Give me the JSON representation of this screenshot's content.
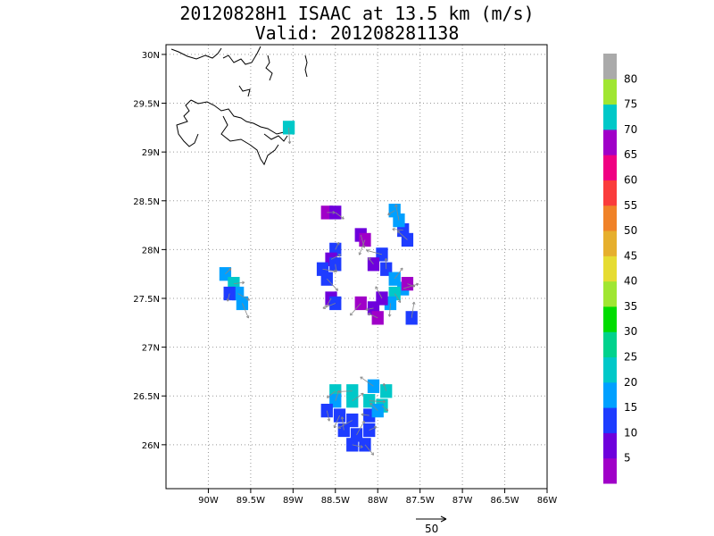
{
  "title": {
    "line1": "20120828H1 ISAAC at 13.5 km (m/s)",
    "line2": "Valid: 201208281138"
  },
  "map": {
    "lon_ticks": [
      "90W",
      "89.5W",
      "89W",
      "88.5W",
      "88W",
      "87.5W",
      "87W",
      "86.5W",
      "86W"
    ],
    "lat_ticks": [
      "30N",
      "29.5N",
      "29N",
      "28.5N",
      "28N",
      "27.5N",
      "27N",
      "26.5N",
      "26N"
    ],
    "lon_range": [
      -90.5,
      -86.0
    ],
    "lat_range": [
      25.55,
      30.1
    ],
    "grid": true
  },
  "colorbar": {
    "labels": [
      "5",
      "10",
      "15",
      "20",
      "25",
      "30",
      "35",
      "40",
      "45",
      "50",
      "55",
      "60",
      "65",
      "70",
      "75",
      "80"
    ],
    "colors": [
      "#a000c8",
      "#6e00dc",
      "#1e3cff",
      "#00a0ff",
      "#00c8c8",
      "#00d28c",
      "#00dc00",
      "#a0e632",
      "#e6dc32",
      "#e6af2d",
      "#f08228",
      "#fa3c3c",
      "#f00082",
      "#a000c8",
      "#00c8c8",
      "#a0e632",
      "#aaaaaa"
    ]
  },
  "wind_cells": [
    {
      "lon": -88.6,
      "lat": 28.38,
      "c": "#a000c8"
    },
    {
      "lon": -88.5,
      "lat": 28.38,
      "c": "#6e00dc"
    },
    {
      "lon": -88.2,
      "lat": 28.15,
      "c": "#6e00dc"
    },
    {
      "lon": -88.15,
      "lat": 28.1,
      "c": "#a000c8"
    },
    {
      "lon": -87.8,
      "lat": 28.4,
      "c": "#00a0ff"
    },
    {
      "lon": -87.7,
      "lat": 28.2,
      "c": "#1e3cff"
    },
    {
      "lon": -87.65,
      "lat": 28.1,
      "c": "#1e3cff"
    },
    {
      "lon": -87.75,
      "lat": 28.3,
      "c": "#00a0ff"
    },
    {
      "lon": -88.5,
      "lat": 28.0,
      "c": "#1e3cff"
    },
    {
      "lon": -88.55,
      "lat": 27.9,
      "c": "#6e00dc"
    },
    {
      "lon": -88.65,
      "lat": 27.8,
      "c": "#1e3cff"
    },
    {
      "lon": -88.6,
      "lat": 27.7,
      "c": "#1e3cff"
    },
    {
      "lon": -88.5,
      "lat": 27.85,
      "c": "#1e3cff"
    },
    {
      "lon": -88.55,
      "lat": 27.5,
      "c": "#6e00dc"
    },
    {
      "lon": -88.5,
      "lat": 27.45,
      "c": "#1e3cff"
    },
    {
      "lon": -87.95,
      "lat": 27.95,
      "c": "#1e3cff"
    },
    {
      "lon": -88.05,
      "lat": 27.85,
      "c": "#6e00dc"
    },
    {
      "lon": -87.9,
      "lat": 27.8,
      "c": "#1e3cff"
    },
    {
      "lon": -87.8,
      "lat": 27.7,
      "c": "#00a0ff"
    },
    {
      "lon": -87.7,
      "lat": 27.6,
      "c": "#00a0ff"
    },
    {
      "lon": -87.65,
      "lat": 27.65,
      "c": "#a000c8"
    },
    {
      "lon": -87.8,
      "lat": 27.55,
      "c": "#00c8c8"
    },
    {
      "lon": -87.85,
      "lat": 27.45,
      "c": "#00a0ff"
    },
    {
      "lon": -88.2,
      "lat": 27.45,
      "c": "#a000c8"
    },
    {
      "lon": -88.05,
      "lat": 27.4,
      "c": "#6e00dc"
    },
    {
      "lon": -88.0,
      "lat": 27.3,
      "c": "#a000c8"
    },
    {
      "lon": -87.95,
      "lat": 27.5,
      "c": "#6e00dc"
    },
    {
      "lon": -87.6,
      "lat": 27.3,
      "c": "#1e3cff"
    },
    {
      "lon": -89.8,
      "lat": 27.75,
      "c": "#00a0ff"
    },
    {
      "lon": -89.7,
      "lat": 27.65,
      "c": "#00c8c8"
    },
    {
      "lon": -89.65,
      "lat": 27.55,
      "c": "#00a0ff"
    },
    {
      "lon": -89.6,
      "lat": 27.45,
      "c": "#00a0ff"
    },
    {
      "lon": -89.75,
      "lat": 27.55,
      "c": "#1e3cff"
    },
    {
      "lon": -88.5,
      "lat": 26.55,
      "c": "#00c8c8"
    },
    {
      "lon": -88.3,
      "lat": 26.55,
      "c": "#00c8c8"
    },
    {
      "lon": -88.05,
      "lat": 26.6,
      "c": "#00a0ff"
    },
    {
      "lon": -87.9,
      "lat": 26.55,
      "c": "#00c8c8"
    },
    {
      "lon": -88.5,
      "lat": 26.45,
      "c": "#00a0ff"
    },
    {
      "lon": -88.3,
      "lat": 26.45,
      "c": "#00c8c8"
    },
    {
      "lon": -88.1,
      "lat": 26.45,
      "c": "#00c8c8"
    },
    {
      "lon": -87.95,
      "lat": 26.4,
      "c": "#00c8c8"
    },
    {
      "lon": -88.6,
      "lat": 26.35,
      "c": "#1e3cff"
    },
    {
      "lon": -88.45,
      "lat": 26.3,
      "c": "#1e3cff"
    },
    {
      "lon": -88.3,
      "lat": 26.25,
      "c": "#1e3cff"
    },
    {
      "lon": -88.1,
      "lat": 26.3,
      "c": "#1e3cff"
    },
    {
      "lon": -88.0,
      "lat": 26.35,
      "c": "#00a0ff"
    },
    {
      "lon": -88.4,
      "lat": 26.15,
      "c": "#1e3cff"
    },
    {
      "lon": -88.25,
      "lat": 26.1,
      "c": "#1e3cff"
    },
    {
      "lon": -88.1,
      "lat": 26.15,
      "c": "#1e3cff"
    },
    {
      "lon": -88.3,
      "lat": 26.0,
      "c": "#1e3cff"
    },
    {
      "lon": -88.15,
      "lat": 26.0,
      "c": "#1e3cff"
    },
    {
      "lon": -89.05,
      "lat": 29.25,
      "c": "#00c8c8"
    }
  ],
  "reference_vector": {
    "label": "50"
  }
}
